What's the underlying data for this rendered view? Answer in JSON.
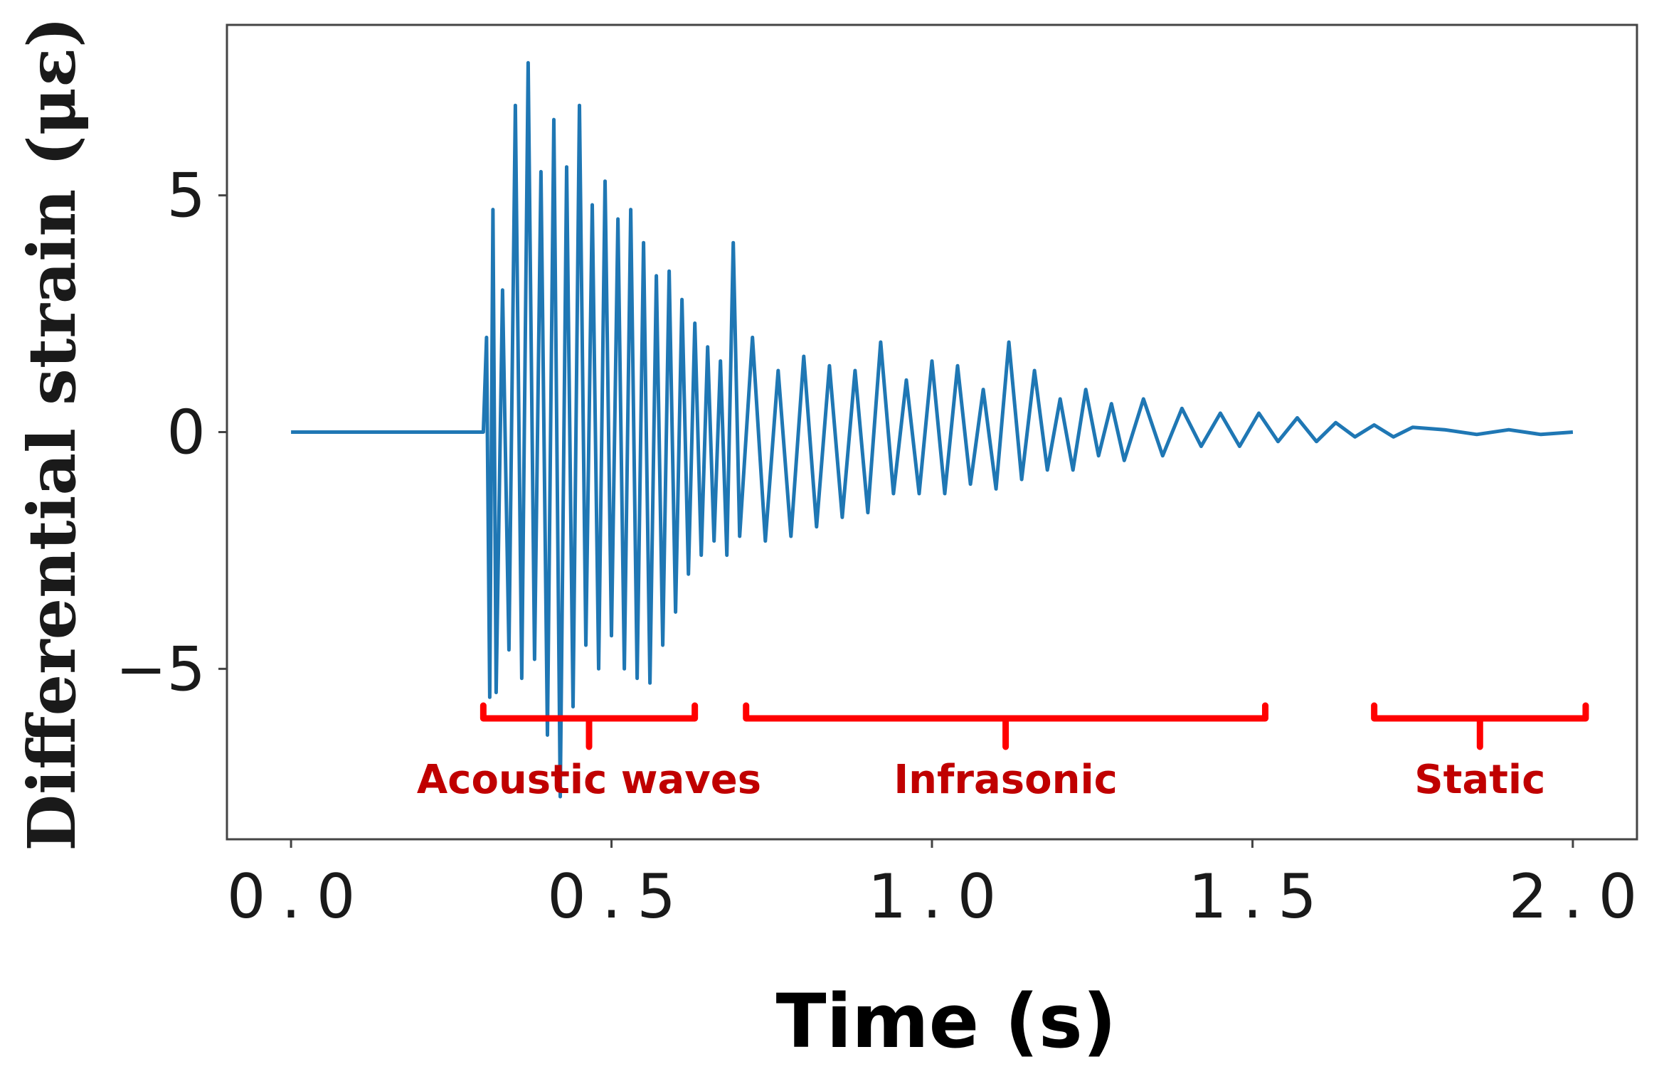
{
  "chart_data": {
    "type": "line",
    "xlabel": "Time (s)",
    "ylabel": "Differential strain  (με)",
    "xlim": [
      -0.1,
      2.1
    ],
    "ylim": [
      -8.6,
      8.6
    ],
    "x_ticks": [
      0.0,
      0.5,
      1.0,
      1.5,
      2.0
    ],
    "x_tick_labels": [
      "0.0",
      "0.5",
      "1.0",
      "1.5",
      "2.0"
    ],
    "y_ticks": [
      -5,
      0,
      5
    ],
    "y_tick_labels": [
      "−5",
      "0",
      "5"
    ],
    "grid": false,
    "series": [
      {
        "color": "#1f77b4",
        "x": [
          0.0,
          0.1,
          0.2,
          0.3,
          0.305,
          0.31,
          0.315,
          0.32,
          0.33,
          0.34,
          0.35,
          0.36,
          0.37,
          0.38,
          0.39,
          0.4,
          0.41,
          0.42,
          0.43,
          0.44,
          0.45,
          0.46,
          0.47,
          0.48,
          0.49,
          0.5,
          0.51,
          0.52,
          0.53,
          0.54,
          0.55,
          0.56,
          0.57,
          0.58,
          0.59,
          0.6,
          0.61,
          0.62,
          0.63,
          0.64,
          0.65,
          0.66,
          0.67,
          0.68,
          0.69,
          0.7,
          0.72,
          0.74,
          0.76,
          0.78,
          0.8,
          0.82,
          0.84,
          0.86,
          0.88,
          0.9,
          0.92,
          0.94,
          0.96,
          0.98,
          1.0,
          1.02,
          1.04,
          1.06,
          1.08,
          1.1,
          1.12,
          1.14,
          1.16,
          1.18,
          1.2,
          1.22,
          1.24,
          1.26,
          1.28,
          1.3,
          1.33,
          1.36,
          1.39,
          1.42,
          1.45,
          1.48,
          1.51,
          1.54,
          1.57,
          1.6,
          1.63,
          1.66,
          1.69,
          1.72,
          1.75,
          1.8,
          1.85,
          1.9,
          1.95,
          2.0
        ],
        "y": [
          0.0,
          0.0,
          0.0,
          0.0,
          2.0,
          -5.6,
          4.7,
          -5.5,
          3.0,
          -4.6,
          6.9,
          -5.2,
          7.8,
          -4.8,
          5.5,
          -6.4,
          6.6,
          -7.7,
          5.6,
          -5.8,
          6.9,
          -4.5,
          4.8,
          -5.0,
          5.3,
          -4.3,
          4.5,
          -5.0,
          4.7,
          -5.2,
          4.0,
          -5.3,
          3.3,
          -4.5,
          3.4,
          -3.8,
          2.8,
          -3.0,
          2.3,
          -2.6,
          1.8,
          -2.3,
          1.5,
          -2.6,
          4.0,
          -2.2,
          2.0,
          -2.3,
          1.3,
          -2.2,
          1.6,
          -2.0,
          1.4,
          -1.8,
          1.3,
          -1.7,
          1.9,
          -1.3,
          1.1,
          -1.3,
          1.5,
          -1.3,
          1.4,
          -1.1,
          0.9,
          -1.2,
          1.9,
          -1.0,
          1.3,
          -0.8,
          0.7,
          -0.8,
          0.9,
          -0.5,
          0.6,
          -0.6,
          0.7,
          -0.5,
          0.5,
          -0.3,
          0.4,
          -0.3,
          0.4,
          -0.2,
          0.3,
          -0.2,
          0.2,
          -0.1,
          0.15,
          -0.1,
          0.1,
          0.05,
          -0.05,
          0.05,
          -0.05,
          0.0
        ]
      }
    ],
    "annotations": [
      {
        "text": "Acoustic waves",
        "x_start": 0.3,
        "x_end": 0.63
      },
      {
        "text": "Infrasonic",
        "x_start": 0.71,
        "x_end": 1.52
      },
      {
        "text": "Static",
        "x_start": 1.69,
        "x_end": 2.02
      }
    ],
    "annotation_color": "#ff0000",
    "annotation_text_color": "#c00000"
  }
}
